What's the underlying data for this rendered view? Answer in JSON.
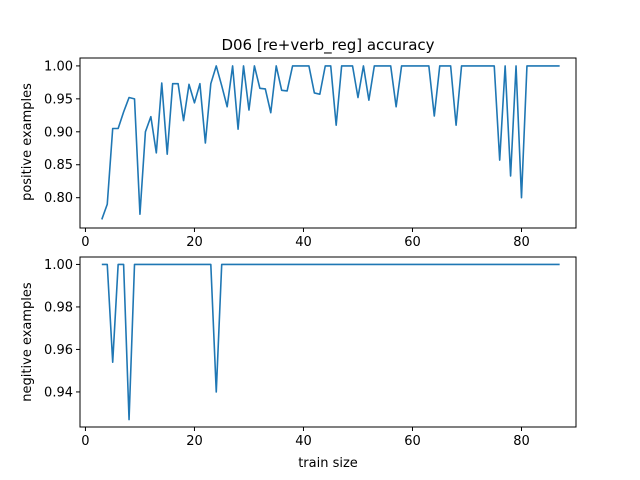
{
  "chart_data": [
    {
      "type": "line",
      "title": "D06 [re+verb_reg] accuracy",
      "xlabel": "",
      "ylabel": "positive examples",
      "xlim": [
        -1,
        90
      ],
      "ylim": [
        0.754,
        1.012
      ],
      "xticks": [
        0,
        20,
        40,
        60,
        80
      ],
      "yticks": [
        0.8,
        0.85,
        0.9,
        0.95,
        1.0
      ],
      "ytick_labels": [
        "0.80",
        "0.85",
        "0.90",
        "0.95",
        "1.00"
      ],
      "grid": false,
      "series": [
        {
          "color": "#1f77b4",
          "x": [
            3,
            4,
            5,
            6,
            7,
            8,
            9,
            10,
            11,
            12,
            13,
            14,
            15,
            16,
            17,
            18,
            19,
            20,
            21,
            22,
            23,
            24,
            25,
            26,
            27,
            28,
            29,
            30,
            31,
            32,
            33,
            34,
            35,
            36,
            37,
            38,
            39,
            40,
            41,
            42,
            43,
            44,
            45,
            46,
            47,
            48,
            49,
            50,
            51,
            52,
            53,
            54,
            55,
            56,
            57,
            58,
            59,
            60,
            61,
            62,
            63,
            64,
            65,
            66,
            67,
            68,
            69,
            70,
            71,
            72,
            73,
            74,
            75,
            76,
            77,
            78,
            79,
            80,
            81,
            82,
            83,
            84,
            85,
            86,
            87
          ],
          "y": [
            0.767,
            0.79,
            0.905,
            0.905,
            0.93,
            0.952,
            0.95,
            0.775,
            0.9,
            0.923,
            0.868,
            0.974,
            0.866,
            0.973,
            0.973,
            0.917,
            0.972,
            0.944,
            0.973,
            0.883,
            0.973,
            1.0,
            0.97,
            0.938,
            1.0,
            0.904,
            1.0,
            0.933,
            1.0,
            0.966,
            0.965,
            0.929,
            1.0,
            0.963,
            0.962,
            1.0,
            1.0,
            1.0,
            1.0,
            0.959,
            0.957,
            1.0,
            1.0,
            0.91,
            1.0,
            1.0,
            1.0,
            0.952,
            1.0,
            0.948,
            1.0,
            1.0,
            1.0,
            1.0,
            0.938,
            1.0,
            1.0,
            1.0,
            1.0,
            1.0,
            1.0,
            0.924,
            1.0,
            1.0,
            1.0,
            0.91,
            1.0,
            1.0,
            1.0,
            1.0,
            1.0,
            1.0,
            1.0,
            0.857,
            1.0,
            0.833,
            1.0,
            0.8,
            1.0,
            1.0,
            1.0,
            1.0,
            1.0,
            1.0,
            1.0
          ]
        }
      ]
    },
    {
      "type": "line",
      "title": "",
      "xlabel": "train size",
      "ylabel": "negitive examples",
      "xlim": [
        -1,
        90
      ],
      "ylim": [
        0.9235,
        1.0035
      ],
      "xticks": [
        0,
        20,
        40,
        60,
        80
      ],
      "yticks": [
        0.94,
        0.96,
        0.98,
        1.0
      ],
      "ytick_labels": [
        "0.94",
        "0.96",
        "0.98",
        "1.00"
      ],
      "grid": false,
      "series": [
        {
          "color": "#1f77b4",
          "x": [
            3,
            4,
            5,
            6,
            7,
            8,
            9,
            10,
            23,
            24,
            25,
            87
          ],
          "y": [
            1.0,
            1.0,
            0.954,
            1.0,
            1.0,
            0.927,
            1.0,
            1.0,
            1.0,
            0.94,
            1.0,
            1.0
          ]
        }
      ]
    }
  ]
}
